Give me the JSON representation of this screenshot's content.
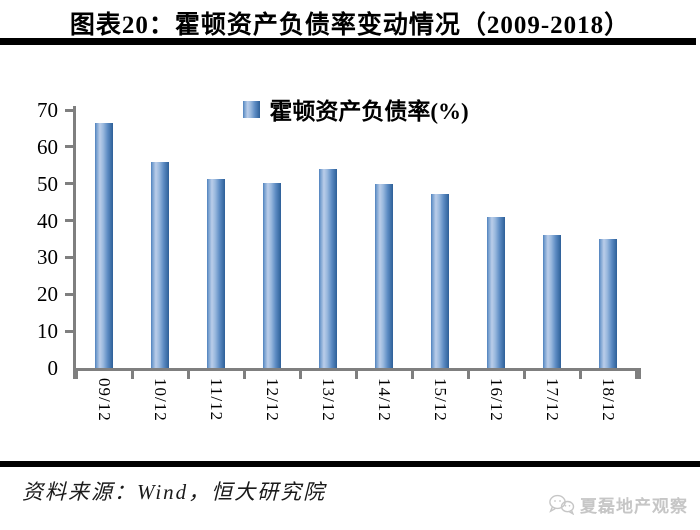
{
  "title": "图表20：霍顿资产负债率变动情况（2009-2018）",
  "legend": {
    "label": "霍顿资产负债率(%)"
  },
  "chart_data": {
    "type": "bar",
    "title": "图表20：霍顿资产负债率变动情况（2009-2018）",
    "legend": "霍顿资产负债率(%)",
    "categories": [
      "09/12",
      "10/12",
      "11/12",
      "12/12",
      "13/12",
      "14/12",
      "15/12",
      "16/12",
      "17/12",
      "18/12"
    ],
    "values": [
      66.5,
      55.9,
      51.2,
      50.3,
      54.0,
      50.0,
      47.1,
      41.0,
      36.2,
      35.0
    ],
    "xlabel": "",
    "ylabel": "",
    "ylim": [
      0,
      70
    ],
    "yticks": [
      0,
      10,
      20,
      30,
      40,
      50,
      60,
      70
    ],
    "grid": false,
    "legend_position": "top-center",
    "axis_color": "#7f7f7f",
    "bar_gradient": [
      "#4f81bd",
      "#7ba3d1",
      "#bacde9",
      "#9ab9de",
      "#5d8cc3",
      "#2d5f98"
    ]
  },
  "footer": {
    "source": "资料来源：Wind，恒大研究院",
    "watermark": "夏磊地产观察"
  }
}
